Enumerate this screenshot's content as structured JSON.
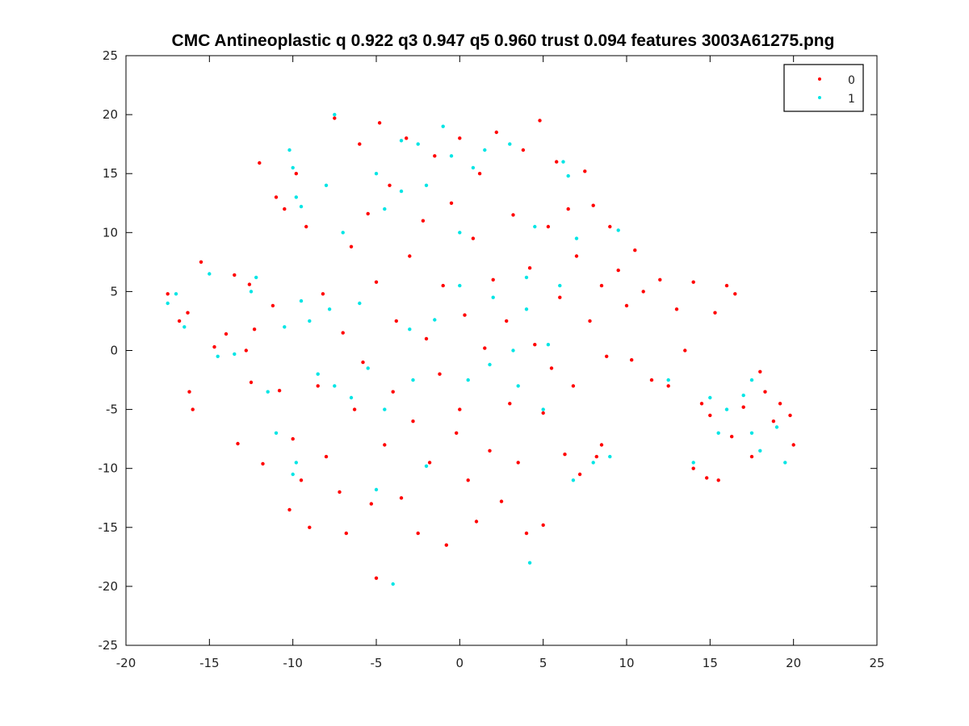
{
  "chart_data": {
    "type": "scatter",
    "title": "CMC Antineoplastic q 0.922 q3 0.947 q5 0.960 trust 0.094 features 3003A61275.png",
    "xlabel": "",
    "ylabel": "",
    "xlim": [
      -20,
      25
    ],
    "ylim": [
      -25,
      25
    ],
    "x_ticks": [
      -20,
      -15,
      -10,
      -5,
      0,
      5,
      10,
      15,
      20,
      25
    ],
    "y_ticks": [
      -25,
      -20,
      -15,
      -10,
      -5,
      0,
      5,
      10,
      15,
      20,
      25
    ],
    "grid": false,
    "legend_placement": "top-right",
    "colors": {
      "0": "#ff0000",
      "1": "#00e5e5"
    },
    "series": [
      {
        "name": "0",
        "color": "#ff0000",
        "points": [
          [
            -17.5,
            4.8
          ],
          [
            -16.8,
            2.5
          ],
          [
            -16.3,
            3.2
          ],
          [
            -16.2,
            -3.5
          ],
          [
            -16.0,
            -5.0
          ],
          [
            -15.5,
            7.5
          ],
          [
            -14.7,
            0.3
          ],
          [
            -14.0,
            1.4
          ],
          [
            -13.5,
            6.4
          ],
          [
            -13.3,
            -7.9
          ],
          [
            -12.8,
            0.0
          ],
          [
            -12.6,
            5.6
          ],
          [
            -12.5,
            -2.7
          ],
          [
            -12.3,
            1.8
          ],
          [
            -12.0,
            15.9
          ],
          [
            -11.8,
            -9.6
          ],
          [
            -11.2,
            3.8
          ],
          [
            -11.0,
            13.0
          ],
          [
            -10.8,
            -3.4
          ],
          [
            -10.5,
            12.0
          ],
          [
            -10.2,
            -13.5
          ],
          [
            -10.0,
            -7.5
          ],
          [
            -9.8,
            15.0
          ],
          [
            -9.5,
            -11.0
          ],
          [
            -9.2,
            10.5
          ],
          [
            -9.0,
            -15.0
          ],
          [
            -8.5,
            -3.0
          ],
          [
            -8.2,
            4.8
          ],
          [
            -8.0,
            -9.0
          ],
          [
            -7.5,
            19.7
          ],
          [
            -7.2,
            -12.0
          ],
          [
            -7.0,
            1.5
          ],
          [
            -6.8,
            -15.5
          ],
          [
            -6.5,
            8.8
          ],
          [
            -6.3,
            -5.0
          ],
          [
            -6.0,
            17.5
          ],
          [
            -5.8,
            -1.0
          ],
          [
            -5.5,
            11.6
          ],
          [
            -5.3,
            -13.0
          ],
          [
            -5.0,
            5.8
          ],
          [
            -5.0,
            -19.3
          ],
          [
            -4.8,
            19.3
          ],
          [
            -4.5,
            -8.0
          ],
          [
            -4.2,
            14.0
          ],
          [
            -4.0,
            -3.5
          ],
          [
            -3.8,
            2.5
          ],
          [
            -3.5,
            -12.5
          ],
          [
            -3.2,
            18.0
          ],
          [
            -3.0,
            8.0
          ],
          [
            -2.8,
            -6.0
          ],
          [
            -2.5,
            -15.5
          ],
          [
            -2.2,
            11.0
          ],
          [
            -2.0,
            1.0
          ],
          [
            -1.8,
            -9.5
          ],
          [
            -1.5,
            16.5
          ],
          [
            -1.2,
            -2.0
          ],
          [
            -1.0,
            5.5
          ],
          [
            -0.8,
            -16.5
          ],
          [
            -0.5,
            12.5
          ],
          [
            -0.2,
            -7.0
          ],
          [
            0.0,
            18.0
          ],
          [
            0.0,
            -5.0
          ],
          [
            0.3,
            3.0
          ],
          [
            0.5,
            -11.0
          ],
          [
            0.8,
            9.5
          ],
          [
            1.0,
            -14.5
          ],
          [
            1.2,
            15.0
          ],
          [
            1.5,
            0.2
          ],
          [
            1.8,
            -8.5
          ],
          [
            2.0,
            6.0
          ],
          [
            2.2,
            18.5
          ],
          [
            2.5,
            -12.8
          ],
          [
            2.8,
            2.5
          ],
          [
            3.0,
            -4.5
          ],
          [
            3.2,
            11.5
          ],
          [
            3.5,
            -9.5
          ],
          [
            3.8,
            17.0
          ],
          [
            4.0,
            -15.5
          ],
          [
            4.2,
            7.0
          ],
          [
            4.5,
            0.5
          ],
          [
            4.8,
            19.5
          ],
          [
            5.0,
            -5.3
          ],
          [
            5.0,
            -14.8
          ],
          [
            5.3,
            10.5
          ],
          [
            5.5,
            -1.5
          ],
          [
            5.8,
            16.0
          ],
          [
            6.0,
            4.5
          ],
          [
            6.3,
            -8.8
          ],
          [
            6.5,
            12.0
          ],
          [
            6.8,
            -3.0
          ],
          [
            7.0,
            8.0
          ],
          [
            7.2,
            -10.5
          ],
          [
            7.5,
            15.2
          ],
          [
            7.8,
            2.5
          ],
          [
            8.0,
            12.3
          ],
          [
            8.2,
            -9.0
          ],
          [
            8.5,
            5.5
          ],
          [
            8.8,
            -0.5
          ],
          [
            9.0,
            10.5
          ],
          [
            9.5,
            6.8
          ],
          [
            10.0,
            3.8
          ],
          [
            10.3,
            -0.8
          ],
          [
            10.5,
            8.5
          ],
          [
            11.0,
            5.0
          ],
          [
            11.5,
            -2.5
          ],
          [
            12.0,
            6.0
          ],
          [
            12.5,
            -3.0
          ],
          [
            13.0,
            3.5
          ],
          [
            13.5,
            0.0
          ],
          [
            14.0,
            5.8
          ],
          [
            14.0,
            -10.0
          ],
          [
            14.5,
            -4.5
          ],
          [
            14.8,
            -10.8
          ],
          [
            15.0,
            -5.5
          ],
          [
            15.3,
            3.2
          ],
          [
            15.5,
            -11.0
          ],
          [
            16.0,
            5.5
          ],
          [
            16.5,
            4.8
          ],
          [
            16.3,
            -7.3
          ],
          [
            17.0,
            -4.8
          ],
          [
            17.5,
            -9.0
          ],
          [
            18.0,
            -1.8
          ],
          [
            18.3,
            -3.5
          ],
          [
            18.8,
            -6.0
          ],
          [
            19.2,
            -4.5
          ],
          [
            19.8,
            -5.5
          ],
          [
            20.0,
            -8.0
          ],
          [
            8.5,
            -8.0
          ]
        ]
      },
      {
        "name": "1",
        "color": "#00e5e5",
        "points": [
          [
            -17.5,
            4.0
          ],
          [
            -17.0,
            4.8
          ],
          [
            -16.5,
            2.0
          ],
          [
            -15.0,
            6.5
          ],
          [
            -14.5,
            -0.5
          ],
          [
            -13.5,
            -0.3
          ],
          [
            -12.5,
            5.0
          ],
          [
            -12.2,
            6.2
          ],
          [
            -11.5,
            -3.5
          ],
          [
            -10.5,
            2.0
          ],
          [
            -10.2,
            17.0
          ],
          [
            -10.0,
            15.5
          ],
          [
            -9.8,
            13.0
          ],
          [
            -9.5,
            12.2
          ],
          [
            -9.8,
            -9.5
          ],
          [
            -10.0,
            -10.5
          ],
          [
            -9.5,
            4.2
          ],
          [
            -9.0,
            2.5
          ],
          [
            -8.5,
            -2.0
          ],
          [
            -8.0,
            14.0
          ],
          [
            -7.8,
            3.5
          ],
          [
            -7.5,
            20.0
          ],
          [
            -7.5,
            -3.0
          ],
          [
            -7.0,
            10.0
          ],
          [
            -6.5,
            -4.0
          ],
          [
            -6.0,
            4.0
          ],
          [
            -5.5,
            -1.5
          ],
          [
            -5.0,
            15.0
          ],
          [
            -5.0,
            -11.8
          ],
          [
            -4.5,
            12.0
          ],
          [
            -4.5,
            -5.0
          ],
          [
            -4.0,
            -19.8
          ],
          [
            -3.5,
            17.8
          ],
          [
            -3.5,
            13.5
          ],
          [
            -3.0,
            1.8
          ],
          [
            -2.8,
            -2.5
          ],
          [
            -2.5,
            17.5
          ],
          [
            -2.0,
            14.0
          ],
          [
            -1.5,
            2.6
          ],
          [
            -1.0,
            19.0
          ],
          [
            -0.5,
            16.5
          ],
          [
            0.0,
            10.0
          ],
          [
            0.0,
            5.5
          ],
          [
            0.5,
            -2.5
          ],
          [
            0.8,
            15.5
          ],
          [
            1.5,
            17.0
          ],
          [
            2.0,
            4.5
          ],
          [
            3.0,
            17.5
          ],
          [
            3.2,
            0.0
          ],
          [
            3.5,
            -3.0
          ],
          [
            4.0,
            6.2
          ],
          [
            4.2,
            -18.0
          ],
          [
            4.5,
            10.5
          ],
          [
            5.0,
            -5.0
          ],
          [
            5.3,
            0.5
          ],
          [
            6.0,
            5.5
          ],
          [
            6.2,
            16.0
          ],
          [
            6.5,
            14.8
          ],
          [
            6.8,
            -11.0
          ],
          [
            7.0,
            9.5
          ],
          [
            8.0,
            -9.5
          ],
          [
            9.0,
            -9.0
          ],
          [
            9.5,
            10.2
          ],
          [
            12.5,
            -2.5
          ],
          [
            14.0,
            -9.5
          ],
          [
            15.0,
            -4.0
          ],
          [
            15.5,
            -7.0
          ],
          [
            16.0,
            -5.0
          ],
          [
            17.0,
            -3.8
          ],
          [
            17.5,
            -7.0
          ],
          [
            17.5,
            -2.5
          ],
          [
            18.0,
            -8.5
          ],
          [
            19.5,
            -9.5
          ],
          [
            19.0,
            -6.5
          ],
          [
            4.0,
            3.5
          ],
          [
            -2.0,
            -9.8
          ],
          [
            1.8,
            -1.2
          ],
          [
            -11.0,
            -7.0
          ]
        ]
      }
    ]
  }
}
